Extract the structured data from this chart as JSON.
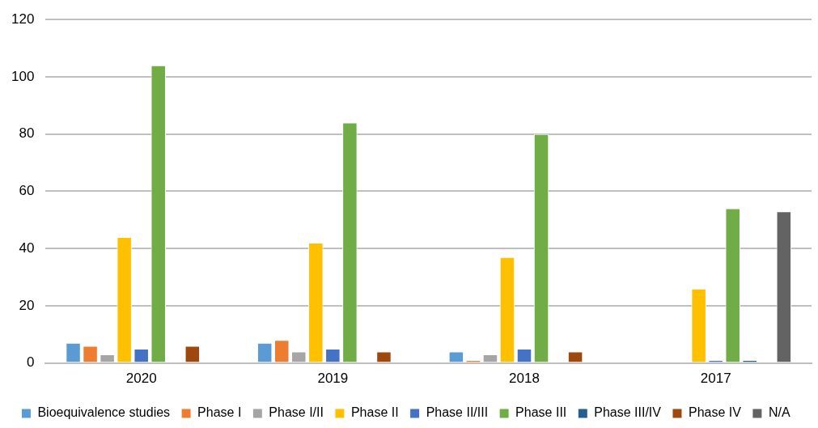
{
  "chart_data": {
    "type": "bar",
    "categories": [
      "2020",
      "2019",
      "2018",
      "2017"
    ],
    "series": [
      {
        "name": "Bioequivalence studies",
        "color": "#5b9bd5",
        "values": [
          7,
          7,
          4,
          null
        ]
      },
      {
        "name": "Phase I",
        "color": "#ed7d31",
        "values": [
          6,
          8,
          1,
          null
        ]
      },
      {
        "name": "Phase I/II",
        "color": "#a5a5a5",
        "values": [
          3,
          4,
          3,
          null
        ]
      },
      {
        "name": "Phase II",
        "color": "#ffc000",
        "values": [
          44,
          42,
          37,
          26
        ]
      },
      {
        "name": "Phase II/III",
        "color": "#4472c4",
        "values": [
          5,
          5,
          5,
          1
        ]
      },
      {
        "name": "Phase III",
        "color": "#70ad47",
        "values": [
          104,
          84,
          80,
          54
        ]
      },
      {
        "name": "Phase III/IV",
        "color": "#255e91",
        "values": [
          null,
          null,
          null,
          1
        ]
      },
      {
        "name": "Phase IV",
        "color": "#9e480e",
        "values": [
          6,
          4,
          4,
          null
        ]
      },
      {
        "name": "N/A",
        "color": "#636363",
        "values": [
          null,
          null,
          null,
          53
        ]
      }
    ],
    "ylim": [
      0,
      120
    ],
    "yticks": [
      0,
      20,
      40,
      60,
      80,
      100,
      120
    ],
    "grid": "y",
    "legend": "bottom"
  }
}
